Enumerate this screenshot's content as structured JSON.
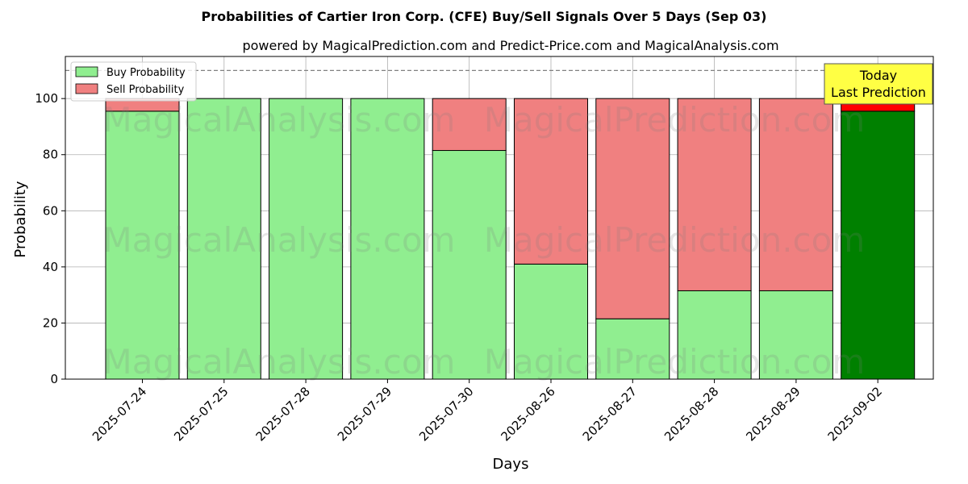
{
  "chart_data": {
    "type": "bar",
    "stacked": true,
    "title": "Probabilities of Cartier Iron Corp. (CFE) Buy/Sell Signals Over 5 Days (Sep 03)",
    "subtitle": "powered by MagicalPrediction.com and Predict-Price.com and MagicalAnalysis.com",
    "xlabel": "Days",
    "ylabel": "Probability",
    "ylim": [
      0,
      115
    ],
    "yticks": [
      0,
      20,
      40,
      60,
      80,
      100
    ],
    "grid": true,
    "legend_placement": "top-left",
    "categories": [
      "2025-07-24",
      "2025-07-25",
      "2025-07-28",
      "2025-07-29",
      "2025-07-30",
      "2025-08-26",
      "2025-08-27",
      "2025-08-28",
      "2025-08-29",
      "2025-09-02"
    ],
    "series": [
      {
        "name": "Buy Probability",
        "values": [
          95.5,
          100,
          100,
          100,
          81.5,
          41,
          21.5,
          31.5,
          31.5,
          95.5
        ],
        "color": "#90ee90",
        "highlight_color": "#008000"
      },
      {
        "name": "Sell Probability",
        "values": [
          4.5,
          0,
          0,
          0,
          18.5,
          59,
          78.5,
          68.5,
          68.5,
          4.5
        ],
        "color": "#f08080",
        "highlight_color": "#ff0000"
      }
    ],
    "reference_line": {
      "y": 110,
      "style": "dashed",
      "color": "#808080"
    },
    "annotation": {
      "lines": [
        "Today",
        "Last Prediction"
      ],
      "category": "2025-09-02",
      "color": "#ffff44"
    },
    "watermarks": [
      "MagicalAnalysis.com",
      "MagicalPrediction.com",
      "MagicalAnalysis.com",
      "MagicalPrediction.com",
      "MagicalAnalysis.com",
      "MagicalPrediction.com"
    ]
  }
}
